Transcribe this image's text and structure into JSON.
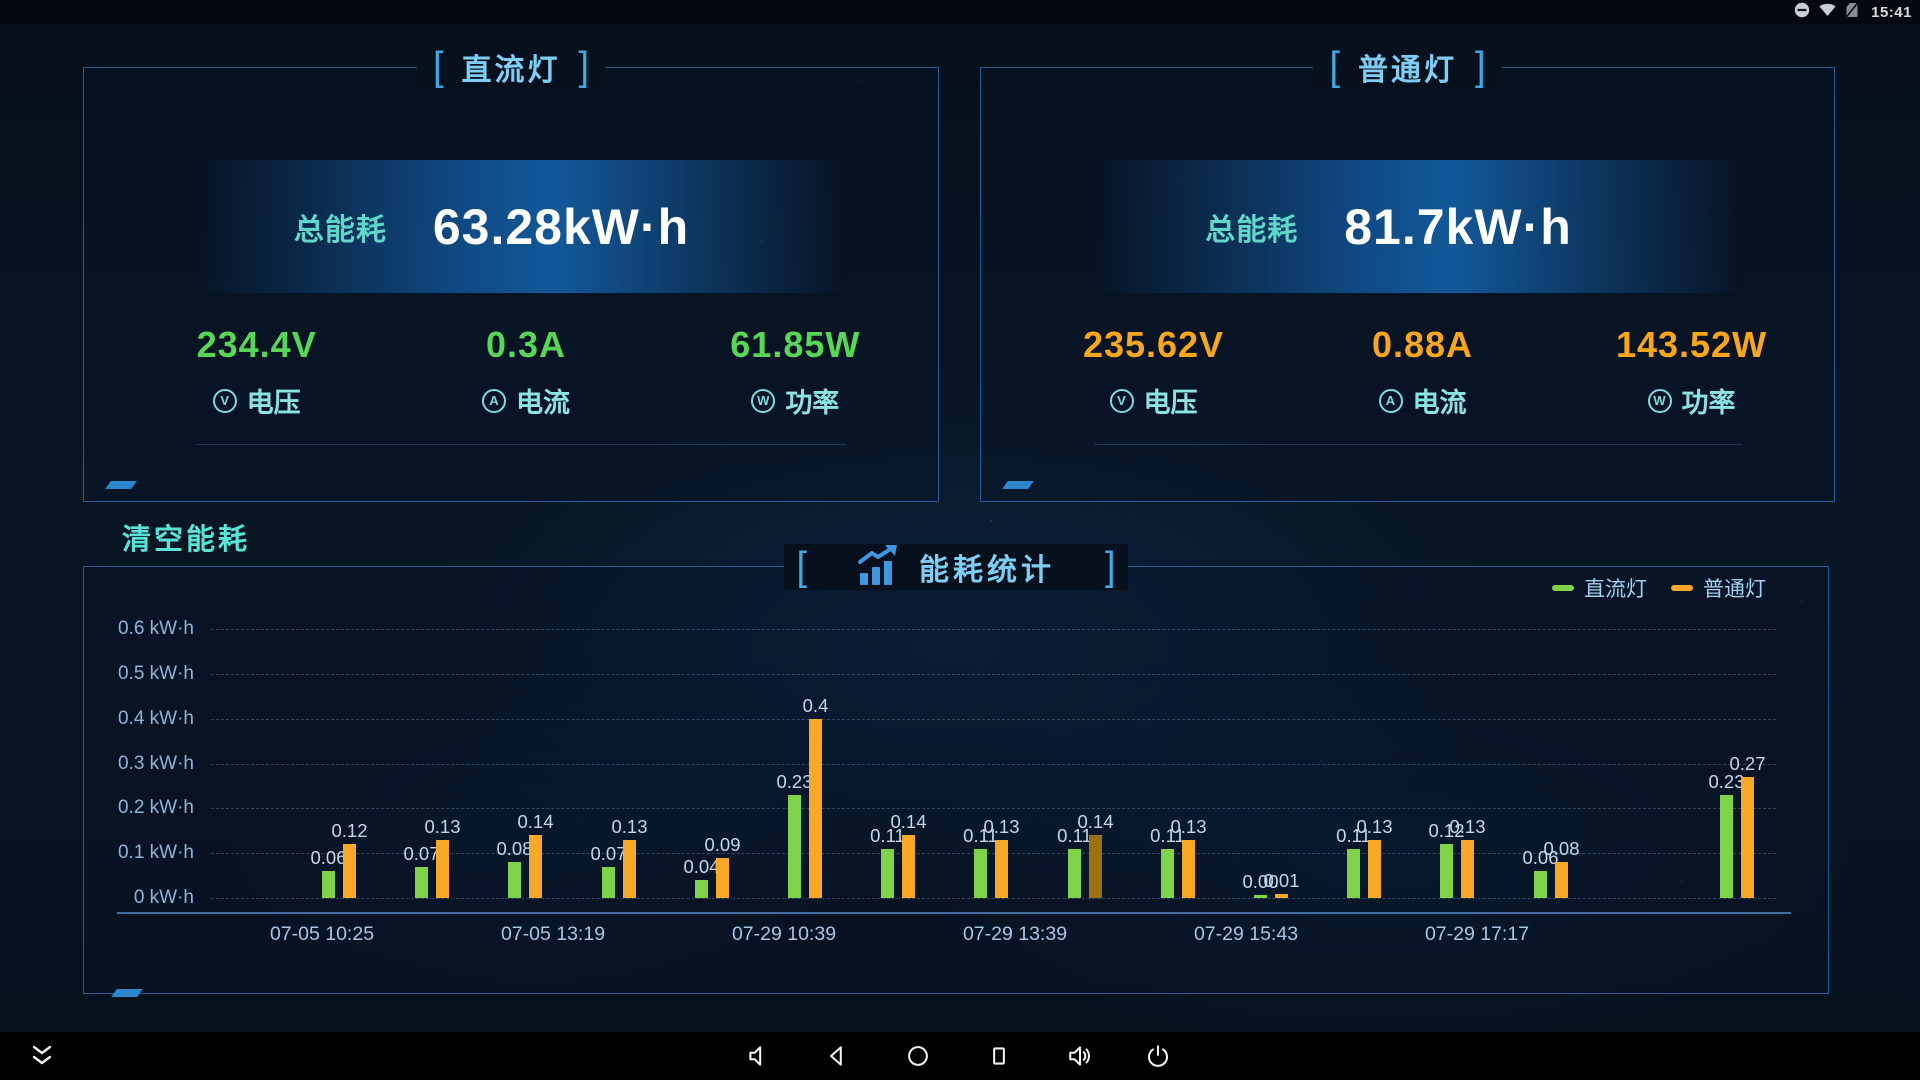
{
  "status_bar": {
    "time": "15:41",
    "icon_names": [
      "do-not-disturb-icon",
      "wifi-icon",
      "no-sim-icon"
    ]
  },
  "panels": [
    {
      "title": "直流灯",
      "bracket_left": "[",
      "bracket_right": "]",
      "total_label": "总能耗",
      "total_value": "63.28kW·h",
      "accent_color": "#57d657",
      "metrics": [
        {
          "value": "234.4V",
          "icon_letter": "V",
          "label": "电压"
        },
        {
          "value": "0.3A",
          "icon_letter": "A",
          "label": "电流"
        },
        {
          "value": "61.85W",
          "icon_letter": "W",
          "label": "功率"
        }
      ]
    },
    {
      "title": "普通灯",
      "bracket_left": "[",
      "bracket_right": "]",
      "total_label": "总能耗",
      "total_value": "81.7kW·h",
      "accent_color": "#f9a61b",
      "metrics": [
        {
          "value": "235.62V",
          "icon_letter": "V",
          "label": "电压"
        },
        {
          "value": "0.88A",
          "icon_letter": "A",
          "label": "电流"
        },
        {
          "value": "143.52W",
          "icon_letter": "W",
          "label": "功率"
        }
      ]
    }
  ],
  "clear_button_label": "清空能耗",
  "chart_data": {
    "type": "bar",
    "title": "能耗统计",
    "bracket_left": "[",
    "bracket_right": "]",
    "legend_position": "top-right",
    "grid": "dashed-horizontal",
    "y_unit": "kW·h",
    "ylim": [
      0,
      0.6
    ],
    "legend": [
      {
        "name": "直流灯",
        "color": "#7ed348"
      },
      {
        "name": "普通灯",
        "color": "#f9a825"
      }
    ],
    "colors": {
      "dc": "#7ed348",
      "pt": "#f9a825",
      "pt_dim": "#9c7110"
    },
    "y_ticks": [
      {
        "value": 0,
        "label": "0 kW·h"
      },
      {
        "value": 0.1,
        "label": "0.1 kW·h"
      },
      {
        "value": 0.2,
        "label": "0.2 kW·h"
      },
      {
        "value": 0.3,
        "label": "0.3 kW·h"
      },
      {
        "value": 0.4,
        "label": "0.4 kW·h"
      },
      {
        "value": 0.5,
        "label": "0.5 kW·h"
      },
      {
        "value": 0.6,
        "label": "0.6 kW·h"
      }
    ],
    "x_labels": [
      "07-05 10:25",
      "07-05 13:19",
      "07-29 10:39",
      "07-29 13:39",
      "07-29 15:43",
      "07-29 17:17"
    ],
    "bars": [
      {
        "dc": 0.06,
        "dc_label": "0.06",
        "pt": 0.12,
        "pt_label": "0.12"
      },
      {
        "dc": 0.07,
        "dc_label": "0.07",
        "pt": 0.13,
        "pt_label": "0.13"
      },
      {
        "dc": 0.08,
        "dc_label": "0.08",
        "pt": 0.14,
        "pt_label": "0.14"
      },
      {
        "dc": 0.07,
        "dc_label": "0.07",
        "pt": 0.13,
        "pt_label": "0.13"
      },
      {
        "dc": 0.04,
        "dc_label": "0.04",
        "pt": 0.09,
        "pt_label": "0.09"
      },
      {
        "dc": 0.23,
        "dc_label": "0.23",
        "pt": 0.4,
        "pt_label": "0.4"
      },
      {
        "dc": 0.11,
        "dc_label": "0.11",
        "pt": 0.14,
        "pt_label": "0.14"
      },
      {
        "dc": 0.11,
        "dc_label": "0.11",
        "pt": 0.13,
        "pt_label": "0.13"
      },
      {
        "dc": 0.11,
        "dc_label": "0.11",
        "pt": 0.14,
        "pt_label": "0.14",
        "dim": true
      },
      {
        "dc": 0.11,
        "dc_label": "0.11",
        "pt": 0.13,
        "pt_label": "0.13"
      },
      {
        "dc": 0.0,
        "dc_label": "0.00",
        "pt": 0.01,
        "pt_label": "0.01"
      },
      {
        "dc": 0.11,
        "dc_label": "0.11",
        "pt": 0.13,
        "pt_label": "0.13"
      },
      {
        "dc": 0.12,
        "dc_label": "0.12",
        "pt": 0.13,
        "pt_label": "0.13"
      },
      {
        "dc": 0.06,
        "dc_label": "0.06",
        "pt": 0.08,
        "pt_label": "0.08"
      },
      {
        "dc": null,
        "pt": null
      },
      {
        "dc": 0.23,
        "dc_label": "0.23",
        "pt": 0.27,
        "pt_label": "0.27"
      }
    ]
  },
  "nav_bar": {
    "icon_names": [
      "collapse-icon",
      "volume-down-icon",
      "back-icon",
      "home-icon",
      "recents-icon",
      "volume-up-icon",
      "power-icon"
    ]
  }
}
